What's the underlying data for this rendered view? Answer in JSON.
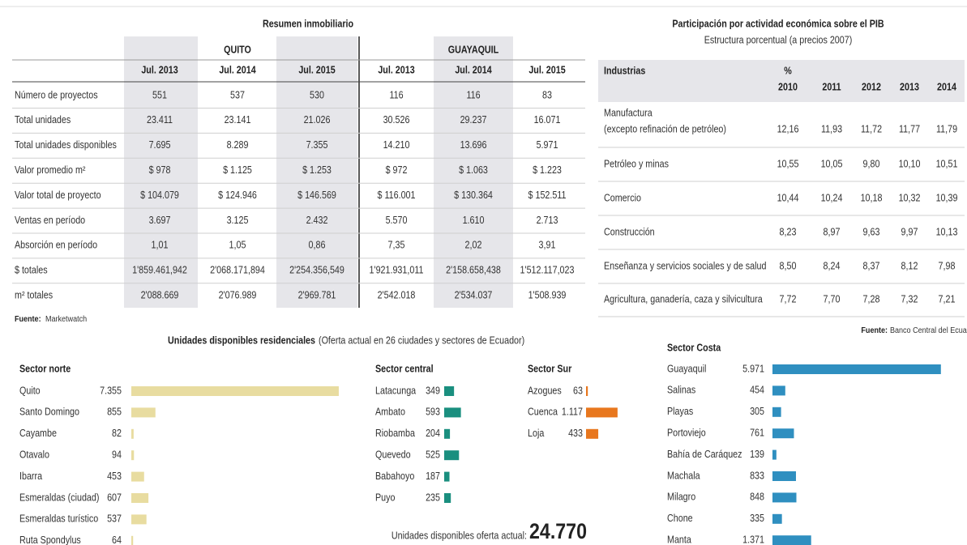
{
  "real_estate": {
    "title": "Resumen inmobiliario",
    "cities": [
      "QUITO",
      "GUAYAQUIL"
    ],
    "periods": [
      "Jul. 2013",
      "Jul. 2014",
      "Jul. 2015",
      "Jul. 2013",
      "Jul. 2014",
      "Jul. 2015"
    ],
    "rows": [
      [
        "Número de proyectos",
        "551",
        "537",
        "530",
        "116",
        "116",
        "83"
      ],
      [
        "Total unidades",
        "23.411",
        "23.141",
        "21.026",
        "30.526",
        "29.237",
        "16.071"
      ],
      [
        "Total unidades disponibles",
        "7.695",
        "8.289",
        "7.355",
        "14.210",
        "13.696",
        "5.971"
      ],
      [
        "Valor promedio m²",
        "$ 978",
        "$ 1.125",
        "$ 1.253",
        "$ 972",
        "$ 1.063",
        "$ 1.223"
      ],
      [
        "Valor total de proyecto",
        "$ 104.079",
        "$ 124.946",
        "$ 146.569",
        "$ 116.001",
        "$ 130.364",
        "$ 152.511"
      ],
      [
        "Ventas en período",
        "3.697",
        "3.125",
        "2.432",
        "5.570",
        "1.610",
        "2.713"
      ],
      [
        "Absorción en período",
        "1,01",
        "1,05",
        "0,86",
        "7,35",
        "2,02",
        "3,91"
      ],
      [
        "$ totales",
        "1'859.461,942",
        "2'068.171,894",
        "2'254.356,549",
        "1'921.931,011",
        "2'158.658,438",
        "1'512.117,023"
      ],
      [
        "m² totales",
        "2'088.669",
        "2'076.989",
        "2'969.781",
        "2'542.018",
        "2'534.037",
        "1'508.939"
      ]
    ],
    "source_label": "Fuente:",
    "source": "Marketwatch"
  },
  "gdp": {
    "title": "Participación por actividad económica sobre el PIB",
    "subtitle": "Estructura porcentual (a precios 2007)",
    "header": {
      "industry": "Industrias",
      "unit": "%",
      "years": [
        "2010",
        "2011",
        "2012",
        "2013",
        "2014"
      ]
    },
    "rows": [
      {
        "industry": [
          "Manufactura",
          "(excepto refinación de petróleo)"
        ],
        "values": [
          "12,16",
          "11,93",
          "11,72",
          "11,77",
          "11,79"
        ]
      },
      {
        "industry": [
          "Petróleo y minas"
        ],
        "values": [
          "10,55",
          "10,05",
          "9,80",
          "10,10",
          "10,51"
        ]
      },
      {
        "industry": [
          "Comercio"
        ],
        "values": [
          "10,44",
          "10,24",
          "10,18",
          "10,32",
          "10,39"
        ]
      },
      {
        "industry": [
          "Construcción"
        ],
        "values": [
          "8,23",
          "8,97",
          "9,63",
          "9,97",
          "10,13"
        ]
      },
      {
        "industry": [
          "Enseñanza y servicios sociales y de salud"
        ],
        "values": [
          "8,50",
          "8,24",
          "8,37",
          "8,12",
          "7,98"
        ]
      },
      {
        "industry": [
          "Agricultura, ganadería, caza y silvicultura"
        ],
        "values": [
          "7,72",
          "7,70",
          "7,28",
          "7,32",
          "7,21"
        ]
      }
    ],
    "source_label": "Fuente:",
    "source": "Banco Central del Ecuador (BCE)"
  },
  "units": {
    "title": "Unidades disponibles residenciales",
    "subtitle": "(Oferta actual en 26 ciudades y sectores de Ecuador)",
    "total_label": "Unidades disponibles oferta actual:",
    "total": "24.770",
    "sectors": [
      {
        "name": "Sector norte",
        "color": "#e8dca0",
        "categories": [
          "Quito",
          "Santo Domingo",
          "Cayambe",
          "Otavalo",
          "Ibarra",
          "Esmeraldas (ciudad)",
          "Esmeraldas turístico",
          "Ruta Spondylus"
        ],
        "values": [
          7355,
          855,
          82,
          94,
          453,
          607,
          537,
          64
        ],
        "value_labels": [
          "7.355",
          "855",
          "82",
          "94",
          "453",
          "607",
          "537",
          "64"
        ]
      },
      {
        "name": "Sector central",
        "color": "#1a8f7f",
        "categories": [
          "Latacunga",
          "Ambato",
          "Riobamba",
          "Quevedo",
          "Babahoyo",
          "Puyo"
        ],
        "values": [
          349,
          593,
          204,
          525,
          187,
          235
        ],
        "value_labels": [
          "349",
          "593",
          "204",
          "525",
          "187",
          "235"
        ]
      },
      {
        "name": "Sector Sur",
        "color": "#e8771e",
        "categories": [
          "Azogues",
          "Cuenca",
          "Loja"
        ],
        "values": [
          63,
          1117,
          433
        ],
        "value_labels": [
          "63",
          "1.117",
          "433"
        ]
      },
      {
        "name": "Sector Costa",
        "color": "#2f8fc0",
        "categories": [
          "Guayaquil",
          "Salinas",
          "Playas",
          "Portoviejo",
          "Bahía de Caráquez",
          "Machala",
          "Milagro",
          "Chone",
          "Manta"
        ],
        "values": [
          5971,
          454,
          305,
          761,
          139,
          833,
          848,
          335,
          1371
        ],
        "value_labels": [
          "5.971",
          "454",
          "305",
          "761",
          "139",
          "833",
          "848",
          "335",
          "1.371"
        ]
      }
    ]
  }
}
